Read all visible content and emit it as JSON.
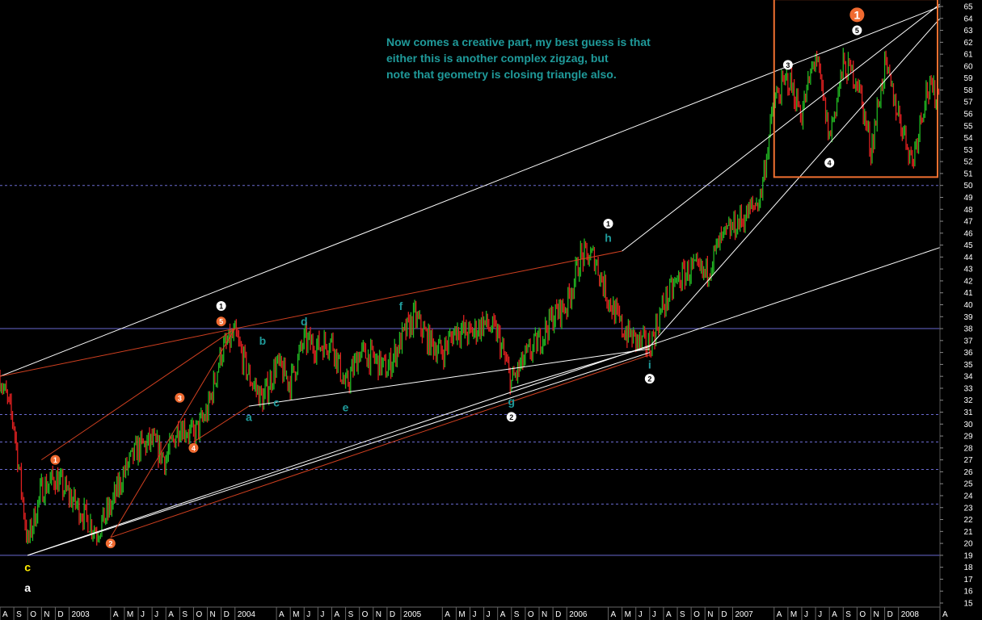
{
  "colors": {
    "background": "#000000",
    "up_bar": "#22b822",
    "down_bar": "#e02020",
    "trendline": "#ffffff",
    "red_line": "#d04020",
    "guide_line": "#6a6ad0",
    "box": "#f07030",
    "wave_orange": "#f06a30",
    "wave_teal": "#1f9a9a",
    "wave_yellow": "#ffee00",
    "annotation_text": "#1f9a9a"
  },
  "annotation": {
    "lines": [
      "Now comes a creative part, my best guess is that",
      "either this is another complex zigzag, but",
      "note that geometry is closing triangle also."
    ]
  },
  "chart_data": {
    "type": "line",
    "subtype": "bar-ohlc",
    "y_axis": {
      "side": "right",
      "min": 15,
      "max": 65,
      "ticks": [
        15,
        16,
        17,
        18,
        19,
        20,
        21,
        22,
        23,
        24,
        25,
        26,
        27,
        28,
        29,
        30,
        31,
        32,
        33,
        34,
        35,
        36,
        37,
        38,
        39,
        40,
        41,
        42,
        43,
        44,
        45,
        46,
        47,
        48,
        49,
        50,
        51,
        52,
        53,
        54,
        55,
        56,
        57,
        58,
        59,
        60,
        61,
        62,
        63,
        64,
        65
      ]
    },
    "x_axis": {
      "range": [
        "2002-08",
        "2008-04"
      ],
      "ticks": [
        {
          "label": "A",
          "date": "2002-08"
        },
        {
          "label": "S",
          "date": "2002-09"
        },
        {
          "label": "O",
          "date": "2002-10"
        },
        {
          "label": "N",
          "date": "2002-11"
        },
        {
          "label": "D",
          "date": "2002-12"
        },
        {
          "label": "2003",
          "date": "2003-01"
        },
        {
          "label": "A",
          "date": "2003-04"
        },
        {
          "label": "M",
          "date": "2003-05"
        },
        {
          "label": "J",
          "date": "2003-06"
        },
        {
          "label": "J",
          "date": "2003-07"
        },
        {
          "label": "A",
          "date": "2003-08"
        },
        {
          "label": "S",
          "date": "2003-09"
        },
        {
          "label": "O",
          "date": "2003-10"
        },
        {
          "label": "N",
          "date": "2003-11"
        },
        {
          "label": "D",
          "date": "2003-12"
        },
        {
          "label": "2004",
          "date": "2004-01"
        },
        {
          "label": "A",
          "date": "2004-04"
        },
        {
          "label": "M",
          "date": "2004-05"
        },
        {
          "label": "J",
          "date": "2004-06"
        },
        {
          "label": "J",
          "date": "2004-07"
        },
        {
          "label": "A",
          "date": "2004-08"
        },
        {
          "label": "S",
          "date": "2004-09"
        },
        {
          "label": "O",
          "date": "2004-10"
        },
        {
          "label": "N",
          "date": "2004-11"
        },
        {
          "label": "D",
          "date": "2004-12"
        },
        {
          "label": "2005",
          "date": "2005-01"
        },
        {
          "label": "A",
          "date": "2005-04"
        },
        {
          "label": "M",
          "date": "2005-05"
        },
        {
          "label": "J",
          "date": "2005-06"
        },
        {
          "label": "J",
          "date": "2005-07"
        },
        {
          "label": "A",
          "date": "2005-08"
        },
        {
          "label": "S",
          "date": "2005-09"
        },
        {
          "label": "O",
          "date": "2005-10"
        },
        {
          "label": "N",
          "date": "2005-11"
        },
        {
          "label": "D",
          "date": "2005-12"
        },
        {
          "label": "2006",
          "date": "2006-01"
        },
        {
          "label": "A",
          "date": "2006-04"
        },
        {
          "label": "M",
          "date": "2006-05"
        },
        {
          "label": "J",
          "date": "2006-06"
        },
        {
          "label": "J",
          "date": "2006-07"
        },
        {
          "label": "A",
          "date": "2006-08"
        },
        {
          "label": "S",
          "date": "2006-09"
        },
        {
          "label": "O",
          "date": "2006-10"
        },
        {
          "label": "N",
          "date": "2006-11"
        },
        {
          "label": "D",
          "date": "2006-12"
        },
        {
          "label": "2007",
          "date": "2007-01"
        },
        {
          "label": "A",
          "date": "2007-04"
        },
        {
          "label": "M",
          "date": "2007-05"
        },
        {
          "label": "J",
          "date": "2007-06"
        },
        {
          "label": "J",
          "date": "2007-07"
        },
        {
          "label": "A",
          "date": "2007-08"
        },
        {
          "label": "S",
          "date": "2007-09"
        },
        {
          "label": "O",
          "date": "2007-10"
        },
        {
          "label": "N",
          "date": "2007-11"
        },
        {
          "label": "D",
          "date": "2007-12"
        },
        {
          "label": "2008",
          "date": "2008-01"
        },
        {
          "label": "A",
          "date": "2008-04"
        }
      ]
    },
    "grid": false,
    "horizontal_levels": [
      {
        "y": 50.0,
        "style": "dashed"
      },
      {
        "y": 38.0,
        "style": "solid"
      },
      {
        "y": 30.8,
        "style": "dashed"
      },
      {
        "y": 28.5,
        "style": "dashed"
      },
      {
        "y": 26.2,
        "style": "dashed"
      },
      {
        "y": 23.3,
        "style": "dashed"
      },
      {
        "y": 19.0,
        "style": "solid"
      }
    ],
    "series": [
      {
        "x": [
          "2002-08",
          "2002-09",
          "2002-10",
          "2002-11",
          "2002-12",
          "2003-01",
          "2003-02",
          "2003-03",
          "2003-04",
          "2003-05",
          "2003-06",
          "2003-07",
          "2003-08",
          "2003-09",
          "2003-10",
          "2003-11",
          "2003-12",
          "2004-01",
          "2004-02",
          "2004-03",
          "2004-04",
          "2004-05",
          "2004-06",
          "2004-07",
          "2004-08",
          "2004-09",
          "2004-10",
          "2004-11",
          "2004-12",
          "2005-01",
          "2005-02",
          "2005-03",
          "2005-04",
          "2005-05",
          "2005-06",
          "2005-07",
          "2005-08",
          "2005-09",
          "2005-10",
          "2005-11",
          "2005-12",
          "2006-01",
          "2006-02",
          "2006-03",
          "2006-04",
          "2006-05",
          "2006-06",
          "2006-07",
          "2006-08",
          "2006-09",
          "2006-10",
          "2006-11",
          "2006-12",
          "2007-01",
          "2007-02",
          "2007-03",
          "2007-04",
          "2007-05",
          "2007-06",
          "2007-07",
          "2007-08",
          "2007-09",
          "2007-10",
          "2007-11",
          "2007-12",
          "2008-01",
          "2008-02",
          "2008-03",
          "2008-04"
        ],
        "y": [
          34,
          30,
          20,
          24.5,
          25.5,
          24,
          22.5,
          21,
          23,
          26,
          28,
          28.5,
          27,
          30,
          29,
          31,
          36,
          37.5,
          34,
          32,
          35,
          33.5,
          37,
          36.5,
          37,
          33,
          36,
          35.5,
          34.5,
          37,
          39,
          37,
          36,
          38,
          37.5,
          38.5,
          37.5,
          33.5,
          35.5,
          37,
          39,
          40,
          44,
          44,
          40.5,
          38,
          37,
          36.5,
          40,
          42,
          43,
          42.5,
          45,
          46.5,
          47.5,
          49,
          57,
          59,
          56,
          61,
          54,
          60,
          59,
          53,
          60,
          56,
          52,
          58,
          57.5
        ]
      }
    ],
    "wave_labels": [
      {
        "text": "c",
        "date": "2002-10",
        "y": 18.0,
        "color": "yellow"
      },
      {
        "text": "a",
        "date": "2002-10",
        "y": 16.3,
        "color": "white"
      },
      {
        "text": "1",
        "date": "2002-12",
        "y": 27.0,
        "color": "orange",
        "circled": true
      },
      {
        "text": "2",
        "date": "2003-04",
        "y": 20.0,
        "color": "orange",
        "circled": true
      },
      {
        "text": "3",
        "date": "2003-09",
        "y": 32.2,
        "color": "orange",
        "circled": true
      },
      {
        "text": "4",
        "date": "2003-10",
        "y": 28.0,
        "color": "orange",
        "circled": true
      },
      {
        "text": "5",
        "date": "2003-12",
        "y": 38.6,
        "color": "orange",
        "circled": true
      },
      {
        "text": "1",
        "date": "2003-12",
        "y": 39.9,
        "color": "white",
        "circled": true
      },
      {
        "text": "a",
        "date": "2004-02",
        "y": 30.6,
        "color": "teal"
      },
      {
        "text": "b",
        "date": "2004-03",
        "y": 37.0,
        "color": "teal"
      },
      {
        "text": "c",
        "date": "2004-04",
        "y": 31.8,
        "color": "teal"
      },
      {
        "text": "d",
        "date": "2004-06",
        "y": 38.6,
        "color": "teal"
      },
      {
        "text": "e",
        "date": "2004-09",
        "y": 31.4,
        "color": "teal"
      },
      {
        "text": "f",
        "date": "2005-01",
        "y": 39.9,
        "color": "teal"
      },
      {
        "text": "g",
        "date": "2005-09",
        "y": 31.9,
        "color": "teal"
      },
      {
        "text": "2",
        "date": "2005-09",
        "y": 30.6,
        "color": "white",
        "circled": true
      },
      {
        "text": "1",
        "date": "2006-04",
        "y": 46.8,
        "color": "white",
        "circled": true
      },
      {
        "text": "h",
        "date": "2006-04",
        "y": 45.6,
        "color": "teal"
      },
      {
        "text": "i",
        "date": "2006-07",
        "y": 35.0,
        "color": "teal"
      },
      {
        "text": "2",
        "date": "2006-07",
        "y": 33.8,
        "color": "white",
        "circled": true
      },
      {
        "text": "3",
        "date": "2007-05",
        "y": 60.1,
        "color": "white",
        "circled": true
      },
      {
        "text": "4",
        "date": "2007-08",
        "y": 51.9,
        "color": "white",
        "circled": true
      },
      {
        "text": "5",
        "date": "2007-10",
        "y": 63.0,
        "color": "white",
        "circled": true
      },
      {
        "text": "1",
        "date": "2007-10",
        "y": 64.3,
        "color": "orange",
        "circled": true,
        "large": true
      }
    ],
    "trendlines": [
      {
        "color": "white",
        "points": [
          [
            "2002-08",
            34.0
          ],
          [
            "2008-04",
            65.0
          ]
        ]
      },
      {
        "color": "white",
        "points": [
          [
            "2002-10",
            19.0
          ],
          [
            "2008-04",
            44.8
          ]
        ]
      },
      {
        "color": "white",
        "points": [
          [
            "2002-10",
            19.0
          ],
          [
            "2006-07",
            36.0
          ]
        ]
      },
      {
        "color": "white",
        "points": [
          [
            "2004-02",
            31.5
          ],
          [
            "2006-07",
            36.3
          ]
        ]
      },
      {
        "color": "white",
        "points": [
          [
            "2005-09",
            33.0
          ],
          [
            "2006-07",
            36.5
          ]
        ]
      },
      {
        "color": "white",
        "points": [
          [
            "2006-05",
            44.5
          ],
          [
            "2008-04",
            65.2
          ]
        ]
      },
      {
        "color": "white",
        "points": [
          [
            "2006-07",
            36.5
          ],
          [
            "2008-04",
            64.0
          ]
        ]
      },
      {
        "color": "red",
        "points": [
          [
            "2002-08",
            34.0
          ],
          [
            "2004-01",
            38.0
          ]
        ]
      },
      {
        "color": "red",
        "points": [
          [
            "2004-01",
            38.0
          ],
          [
            "2006-05",
            44.5
          ]
        ]
      },
      {
        "color": "red",
        "points": [
          [
            "2002-11",
            27.0
          ],
          [
            "2004-01",
            38.0
          ]
        ]
      },
      {
        "color": "red",
        "points": [
          [
            "2003-04",
            20.5
          ],
          [
            "2004-01",
            38.0
          ]
        ]
      },
      {
        "color": "red",
        "points": [
          [
            "2003-04",
            20.5
          ],
          [
            "2006-07",
            35.8
          ]
        ]
      },
      {
        "color": "red",
        "points": [
          [
            "2003-10",
            28.5
          ],
          [
            "2004-02",
            31.5
          ]
        ]
      }
    ],
    "highlight_box": {
      "x_from": "2007-04",
      "x_to": "2008-04",
      "y_from": 50.7,
      "y_to": 65.6,
      "color": "orange"
    }
  }
}
